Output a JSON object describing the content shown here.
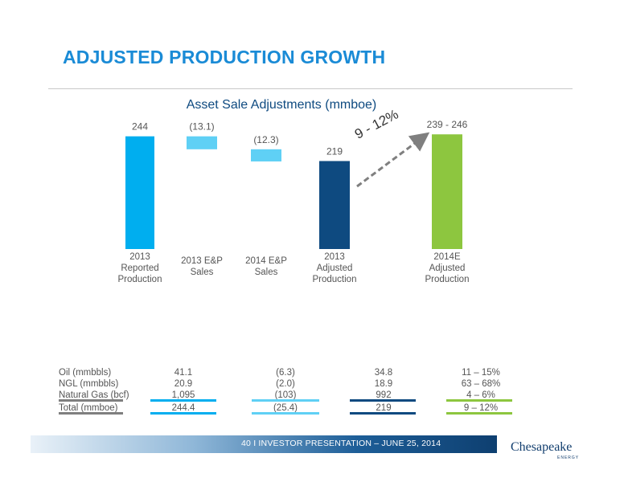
{
  "page_title": "ADJUSTED PRODUCTION GROWTH",
  "chart_data": {
    "type": "bar",
    "title": "Asset Sale Adjustments (mmboe)",
    "subtype": "waterfall",
    "categories": [
      "2013\nReported\nProduction",
      "2013 E&P\nSales",
      "2014 E&P\nSales",
      "2013\nAdjusted\nProduction",
      "2014E\nAdjusted\nProduction"
    ],
    "values": [
      244,
      -13.1,
      -12.3,
      219,
      242.5
    ],
    "value_labels": [
      "244",
      "(13.1)",
      "(12.3)",
      "219",
      "239 - 246"
    ],
    "range_last": [
      239,
      246
    ],
    "colors": [
      "#00aeef",
      "#5fd0f5",
      "#5fd0f5",
      "#0e4a80",
      "#8dc63f"
    ],
    "growth_annotation": "9 - 12%",
    "ylim": [
      130,
      260
    ]
  },
  "table": {
    "columns": [
      {
        "label": "2013\nReported\nProduction",
        "color": "#00aeef"
      },
      {
        "label": "E&P\nSales",
        "color": "#5fd0f5"
      },
      {
        "label": "2013 Adjusted\nProduction",
        "color": "#0e4a80"
      },
      {
        "label": "2014E\nAdjusted\nProduction\nGrowth",
        "color": "#8dc63f"
      }
    ],
    "rows": [
      {
        "label": "Oil (mmbbls)",
        "values": [
          "41.1",
          "(6.3)",
          "34.8",
          "11 – 15%"
        ]
      },
      {
        "label": "NGL (mmbbls)",
        "values": [
          "20.9",
          "(2.0)",
          "18.9",
          "63 – 68%"
        ]
      },
      {
        "label": "Natural Gas (bcf)",
        "values": [
          "1,095",
          "(103)",
          "992",
          "4 – 6%"
        ]
      }
    ],
    "total": {
      "label": "Total (mmboe)",
      "values": [
        "244.4",
        "(25.4)",
        "219",
        "9 – 12%"
      ]
    }
  },
  "footer": {
    "text": "40   I   INVESTOR PRESENTATION – JUNE 25, 2014",
    "logo_word": "Chesapeake",
    "logo_sub": "ENERGY"
  }
}
